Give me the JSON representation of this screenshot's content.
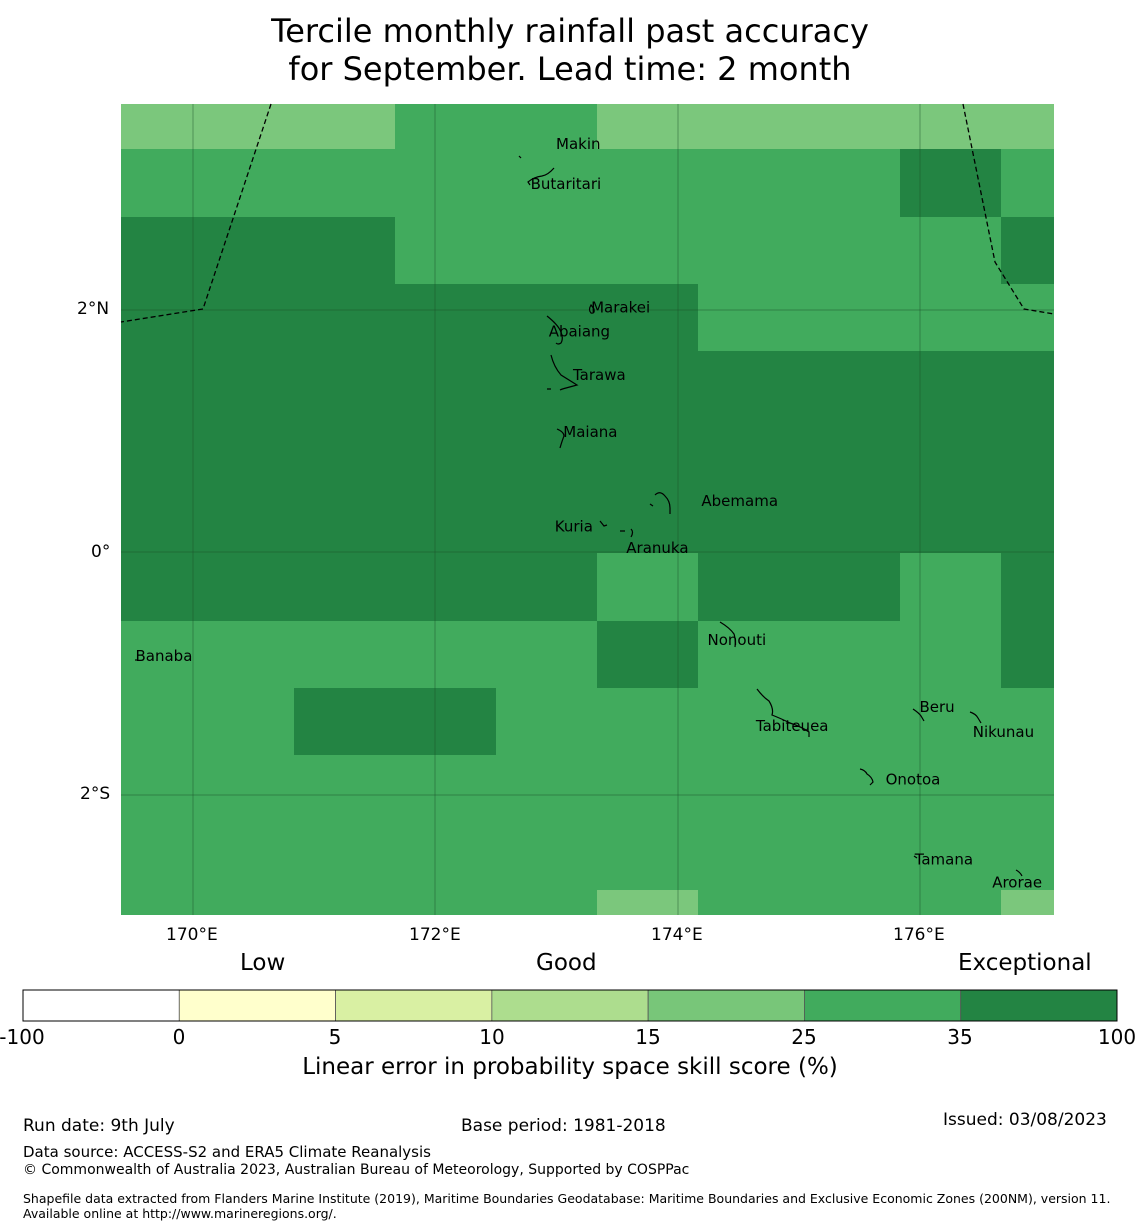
{
  "title": {
    "line1": "Tercile monthly rainfall past accuracy",
    "line2": "for September. Lead time: 2 month"
  },
  "map": {
    "lon_range": [
      169.4,
      177.1
    ],
    "lat_range": [
      -3.0,
      3.7
    ],
    "x_ticks": [
      {
        "value": 170,
        "label": "170°E"
      },
      {
        "value": 172,
        "label": "172°E"
      },
      {
        "value": 174,
        "label": "174°E"
      },
      {
        "value": 176,
        "label": "176°E"
      }
    ],
    "y_ticks": [
      {
        "value": 2,
        "label": "2°N"
      },
      {
        "value": 0,
        "label": "0°"
      },
      {
        "value": -2,
        "label": "2°S"
      }
    ],
    "grid_lines": true,
    "skill_colors": {
      "c2": "#7bc77c",
      "c3": "#41ab5d",
      "c4": "#238443"
    },
    "places": [
      {
        "name": "Makin",
        "lon": 172.99,
        "lat": 3.37
      },
      {
        "name": "Butaritari",
        "lon": 172.78,
        "lat": 3.04
      },
      {
        "name": "Marakei",
        "lon": 173.28,
        "lat": 2.02
      },
      {
        "name": "Abaiang",
        "lon": 172.93,
        "lat": 1.82
      },
      {
        "name": "Tarawa",
        "lon": 173.13,
        "lat": 1.46
      },
      {
        "name": "Maiana",
        "lon": 173.05,
        "lat": 0.99
      },
      {
        "name": "Abemama",
        "lon": 174.19,
        "lat": 0.42
      },
      {
        "name": "Kuria",
        "lon": 172.98,
        "lat": 0.21
      },
      {
        "name": "Aranuka",
        "lon": 173.57,
        "lat": 0.03
      },
      {
        "name": "Nonouti",
        "lon": 174.24,
        "lat": -0.73
      },
      {
        "name": "Banaba",
        "lon": 169.52,
        "lat": -0.86
      },
      {
        "name": "Tabiteuea",
        "lon": 174.64,
        "lat": -1.44
      },
      {
        "name": "Beru",
        "lon": 175.99,
        "lat": -1.28
      },
      {
        "name": "Nikunau",
        "lon": 176.43,
        "lat": -1.49
      },
      {
        "name": "Onotoa",
        "lon": 175.71,
        "lat": -1.88
      },
      {
        "name": "Tamana",
        "lon": 175.95,
        "lat": -2.54
      },
      {
        "name": "Arorae",
        "lon": 176.59,
        "lat": -2.73
      }
    ]
  },
  "colorbar": {
    "categories": [
      "Low",
      "Good",
      "Exceptional"
    ],
    "bins": [
      {
        "from": -100,
        "to": 0,
        "color": "#ffffff"
      },
      {
        "from": 0,
        "to": 5,
        "color": "#ffffcc"
      },
      {
        "from": 5,
        "to": 10,
        "color": "#d9f0a3"
      },
      {
        "from": 10,
        "to": 15,
        "color": "#addd8e"
      },
      {
        "from": 15,
        "to": 25,
        "color": "#78c679"
      },
      {
        "from": 25,
        "to": 35,
        "color": "#41ab5d"
      },
      {
        "from": 35,
        "to": 100,
        "color": "#238443"
      }
    ],
    "ticks": [
      "-100",
      "0",
      "5",
      "10",
      "15",
      "25",
      "35",
      "100"
    ],
    "label": "Linear error in probability space skill score (%)"
  },
  "footer": {
    "run_date": "Run date: 9th July",
    "base_period": "Base period: 1981-2018",
    "issued": "Issued: 03/08/2023",
    "data_source": "Data source: ACCESS-S2 and ERA5 Climate Reanalysis",
    "copyright": "© Commonwealth of Australia 2023, Australian Bureau of Meteorology, Supported by COSPPac",
    "shapefile": "Shapefile data extracted from Flanders Marine Institute (2019), Maritime Boundaries Geodatabase: Maritime Boundaries and Exclusive Economic Zones (200NM), version 11. Available online at http://www.marineregions.org/."
  }
}
